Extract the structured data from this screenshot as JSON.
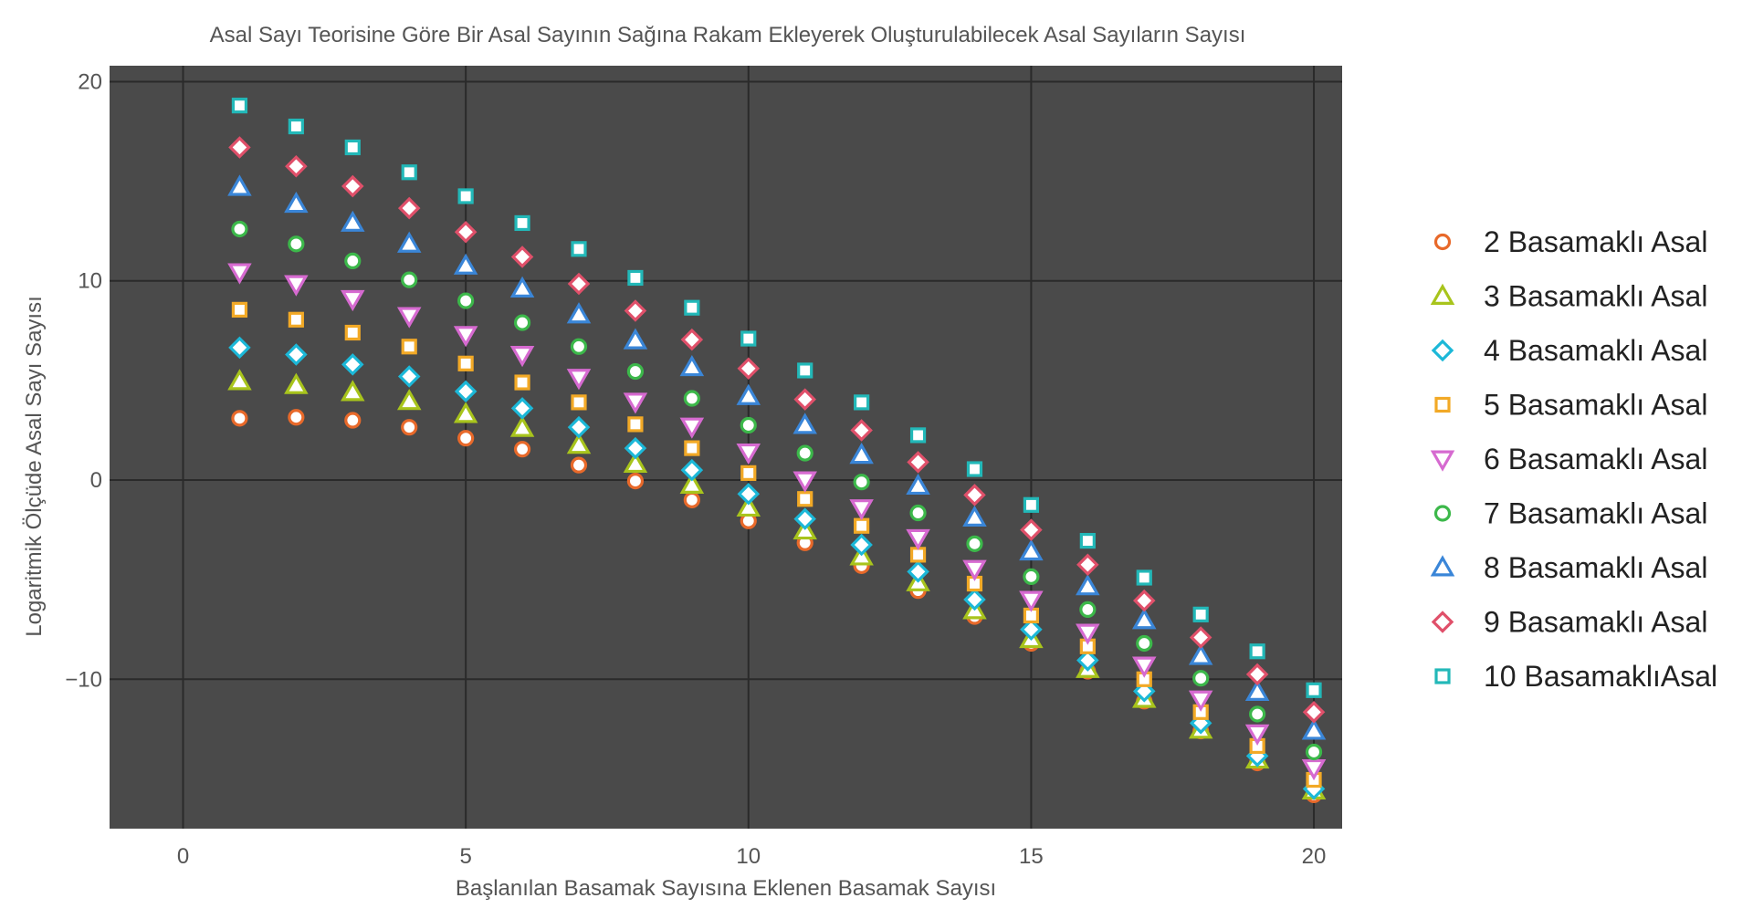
{
  "chart_data": {
    "type": "scatter",
    "title": "Asal Sayı Teorisine Göre Bir Asal Sayının Sağına Rakam Ekleyerek Oluşturulabilecek Asal Sayıların Sayısı",
    "xlabel": "Başlanılan Basamak Sayısına Eklenen Basamak Sayısı",
    "ylabel": "Logaritmik Ölçüde Asal Sayı Sayısı",
    "xlim": [
      -1.3,
      20.5
    ],
    "ylim": [
      -17.5,
      20.8
    ],
    "xticks": [
      0,
      5,
      10,
      15,
      20
    ],
    "yticks": [
      20,
      10,
      0,
      -10
    ],
    "ytick_labels": [
      "20",
      "10",
      "0",
      "−10"
    ],
    "grid": true,
    "plot_background": "#4a4a4a",
    "gridline_color": "#2a2a2a",
    "legend_position": "right",
    "x": [
      1,
      2,
      3,
      4,
      5,
      6,
      7,
      8,
      9,
      10,
      11,
      12,
      13,
      14,
      15,
      16,
      17,
      18,
      19,
      20
    ],
    "series": [
      {
        "name": "2 Basamaklı Asal",
        "marker": "circle",
        "color": "#e8692a",
        "values": [
          3.1,
          3.15,
          3.0,
          2.65,
          2.1,
          1.55,
          0.75,
          -0.05,
          -1.0,
          -2.05,
          -3.15,
          -4.3,
          -5.55,
          -6.85,
          -8.2,
          -9.6,
          -11.1,
          -12.6,
          -14.2,
          -15.8
        ]
      },
      {
        "name": "3 Basamaklı Asal",
        "marker": "triangle-up",
        "color": "#a8c41c",
        "values": [
          4.95,
          4.75,
          4.4,
          3.95,
          3.3,
          2.6,
          1.75,
          0.8,
          -0.25,
          -1.4,
          -2.55,
          -3.85,
          -5.15,
          -6.55,
          -8.0,
          -9.5,
          -11.0,
          -12.55,
          -14.05,
          -15.6
        ]
      },
      {
        "name": "4 Basamaklı Asal",
        "marker": "diamond",
        "color": "#1cb8d8",
        "values": [
          6.65,
          6.3,
          5.8,
          5.2,
          4.45,
          3.6,
          2.65,
          1.6,
          0.5,
          -0.7,
          -1.95,
          -3.25,
          -4.6,
          -6.0,
          -7.5,
          -9.05,
          -10.6,
          -12.2,
          -13.85,
          -15.5
        ]
      },
      {
        "name": "5 Basamaklı Asal",
        "marker": "square",
        "color": "#f2a926",
        "values": [
          8.55,
          8.05,
          7.4,
          6.7,
          5.85,
          4.9,
          3.9,
          2.8,
          1.6,
          0.35,
          -0.95,
          -2.3,
          -3.75,
          -5.2,
          -6.8,
          -8.35,
          -10.0,
          -11.65,
          -13.35,
          -15.05
        ]
      },
      {
        "name": "6 Basamaklı Asal",
        "marker": "triangle-down",
        "color": "#d66ad0",
        "values": [
          10.45,
          9.85,
          9.1,
          8.25,
          7.3,
          6.3,
          5.15,
          3.95,
          2.7,
          1.4,
          0.0,
          -1.4,
          -2.9,
          -4.45,
          -6.0,
          -7.65,
          -9.3,
          -11.0,
          -12.7,
          -14.45
        ]
      },
      {
        "name": "7 Basamaklı Asal",
        "marker": "circle",
        "color": "#3cb84a",
        "values": [
          12.6,
          11.85,
          11.0,
          10.05,
          9.0,
          7.9,
          6.7,
          5.45,
          4.1,
          2.75,
          1.35,
          -0.1,
          -1.65,
          -3.2,
          -4.85,
          -6.5,
          -8.2,
          -9.95,
          -11.75,
          -13.65
        ]
      },
      {
        "name": "8 Basamaklı Asal",
        "marker": "triangle-up",
        "color": "#3a86d8",
        "values": [
          14.7,
          13.85,
          12.9,
          11.85,
          10.75,
          9.6,
          8.3,
          7.0,
          5.65,
          4.2,
          2.75,
          1.25,
          -0.3,
          -1.9,
          -3.6,
          -5.35,
          -7.05,
          -8.85,
          -10.65,
          -12.6
        ]
      },
      {
        "name": "9 Basamaklı Asal",
        "marker": "diamond",
        "color": "#e0506a",
        "values": [
          16.7,
          15.75,
          14.75,
          13.65,
          12.45,
          11.2,
          9.85,
          8.5,
          7.05,
          5.6,
          4.05,
          2.5,
          0.9,
          -0.75,
          -2.5,
          -4.25,
          -6.05,
          -7.9,
          -9.75,
          -11.65
        ]
      },
      {
        "name": "10 BasamaklıAsal",
        "marker": "square",
        "color": "#22b8b8",
        "values": [
          18.8,
          17.75,
          16.7,
          15.45,
          14.25,
          12.9,
          11.6,
          10.15,
          8.65,
          7.1,
          5.5,
          3.9,
          2.25,
          0.55,
          -1.25,
          -3.05,
          -4.9,
          -6.75,
          -8.6,
          -10.55
        ]
      }
    ]
  }
}
